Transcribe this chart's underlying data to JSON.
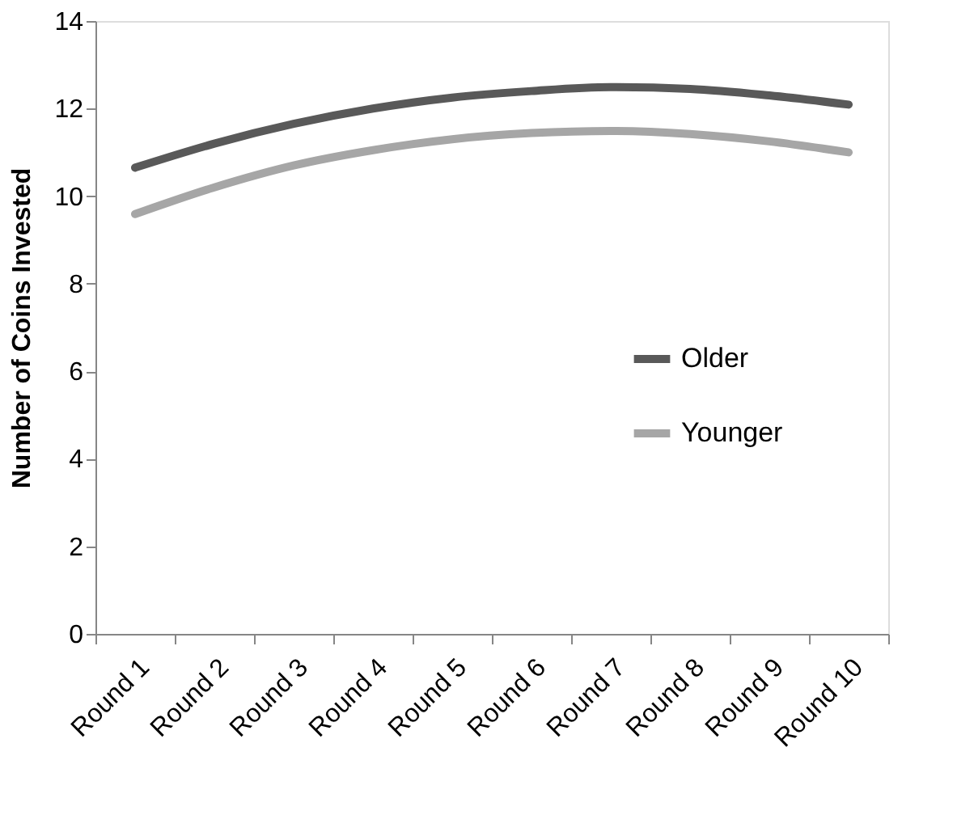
{
  "chart_data": {
    "type": "line",
    "ylabel": "Number of Coins Invested",
    "categories": [
      "Round 1",
      "Round 2",
      "Round 3",
      "Round 4",
      "Round 5",
      "Round 6",
      "Round 7",
      "Round 8",
      "Round 9",
      "Round 10"
    ],
    "series": [
      {
        "name": "Older",
        "color": "#595959",
        "values": [
          10.65,
          11.2,
          11.65,
          12.0,
          12.25,
          12.4,
          12.49,
          12.45,
          12.3,
          12.09
        ]
      },
      {
        "name": "Younger",
        "color": "#a6a6a6",
        "values": [
          9.59,
          10.2,
          10.7,
          11.05,
          11.3,
          11.44,
          11.49,
          11.42,
          11.25,
          11.0
        ]
      }
    ],
    "ylim": [
      0,
      14
    ],
    "yticks": [
      0,
      2,
      4,
      6,
      8,
      10,
      12,
      14
    ],
    "grid": false,
    "legend": "right",
    "marker": "none",
    "line_style": "solid"
  }
}
